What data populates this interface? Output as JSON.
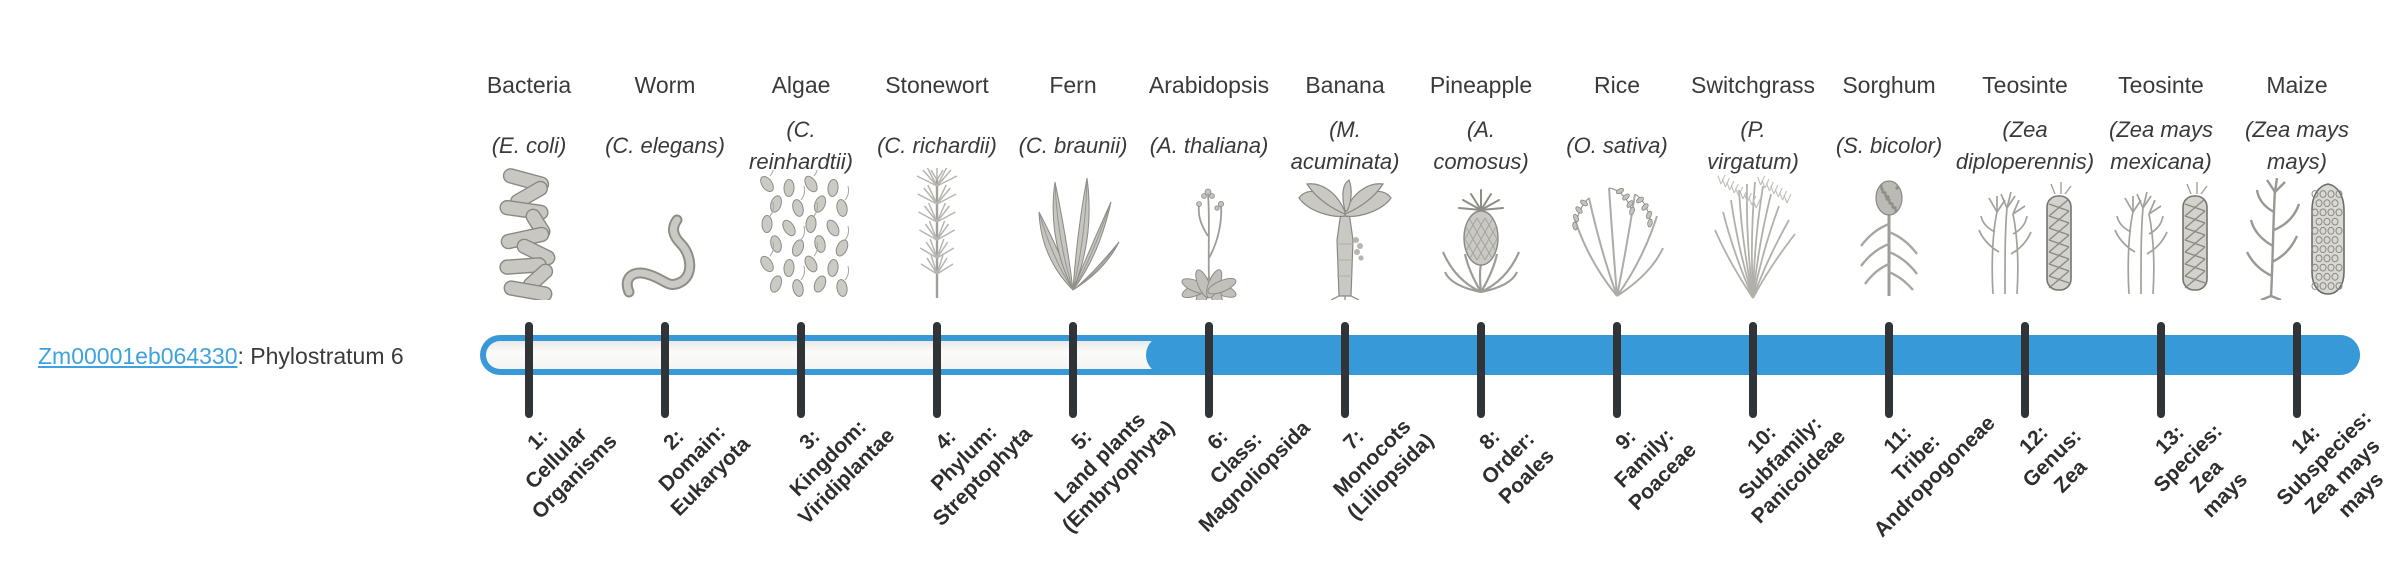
{
  "gene": {
    "id": "Zm00001eb064330",
    "suffix": ": Phylostratum 6",
    "phylostratum": 6
  },
  "colors": {
    "bar_blue": "#3899d9",
    "link_blue": "#3ea2de",
    "tick": "#313437",
    "text": "#3a3a3a",
    "stratum_label": "#2e2e2e"
  },
  "taxa": [
    {
      "common": "Bacteria",
      "species": "(E. coli)",
      "icon": "bacteria-icon",
      "stratum_label": "1:\nCellular\nOrganisms"
    },
    {
      "common": "Worm",
      "species": "(C. elegans)",
      "icon": "worm-icon",
      "stratum_label": "2:\nDomain:\nEukaryota"
    },
    {
      "common": "Algae",
      "species": "(C.\nreinhardtii)",
      "icon": "algae-icon",
      "stratum_label": "3:\nKingdom:\nViridiplantae"
    },
    {
      "common": "Stonewort",
      "species": "(C. richardii)",
      "icon": "stonewort-icon",
      "stratum_label": "4:\nPhylum:\nStreptophyta"
    },
    {
      "common": "Fern",
      "species": "(C. braunii)",
      "icon": "fern-icon",
      "stratum_label": "5:\nLand plants\n(Embryophyta)"
    },
    {
      "common": "Arabidopsis",
      "species": "(A. thaliana)",
      "icon": "arabidopsis-icon",
      "stratum_label": "6:\nClass:\nMagnoliopsida"
    },
    {
      "common": "Banana",
      "species": "(M.\nacuminata)",
      "icon": "banana-icon",
      "stratum_label": "7:\nMonocots\n(Liliopsida)"
    },
    {
      "common": "Pineapple",
      "species": "(A.\ncomosus)",
      "icon": "pineapple-icon",
      "stratum_label": "8:\nOrder:\nPoales"
    },
    {
      "common": "Rice",
      "species": "(O. sativa)",
      "icon": "rice-icon",
      "stratum_label": "9:\nFamily:\nPoaceae"
    },
    {
      "common": "Switchgrass",
      "species": "(P.\nvirgatum)",
      "icon": "switchgrass-icon",
      "stratum_label": "10:\nSubfamily:\nPanicoideae"
    },
    {
      "common": "Sorghum",
      "species": "(S. bicolor)",
      "icon": "sorghum-icon",
      "stratum_label": "11:\nTribe:\nAndropogoneae"
    },
    {
      "common": "Teosinte",
      "species": "(Zea\ndiploperennis)",
      "icon": "teosinte-icon",
      "stratum_label": "12:\nGenus:\nZea"
    },
    {
      "common": "Teosinte",
      "species": "(Zea mays\nmexicana)",
      "icon": "teosinte-icon",
      "stratum_label": "13:\nSpecies:\nZea\nmays"
    },
    {
      "common": "Maize",
      "species": "(Zea mays\nmays)",
      "icon": "maize-icon",
      "stratum_label": "14:\nSubspecies:\nZea mays\nmays"
    }
  ],
  "chart_data": {
    "type": "bar",
    "title": "Zm00001eb064330: Phylostratum 6",
    "description": "Phylostratigraphy timeline: a horizontal capsule spanning 14 taxonomic strata; strata 6 through 14 are filled blue, indicating the gene dates to phylostratum 6 (Class: Magnoliopsida).",
    "categories": [
      "1: Cellular Organisms",
      "2: Domain: Eukaryota",
      "3: Kingdom: Viridiplantae",
      "4: Phylum: Streptophyta",
      "5: Land plants (Embryophyta)",
      "6: Class: Magnoliopsida",
      "7: Monocots (Liliopsida)",
      "8: Order: Poales",
      "9: Family: Poaceae",
      "10: Subfamily: Panicoideae",
      "11: Tribe: Andropogoneae",
      "12: Genus: Zea",
      "13: Species: Zea mays",
      "14: Subspecies: Zea mays mays"
    ],
    "series": [
      {
        "name": "stratum filled (1 = blue, 0 = empty)",
        "values": [
          0,
          0,
          0,
          0,
          0,
          1,
          1,
          1,
          1,
          1,
          1,
          1,
          1,
          1
        ]
      }
    ],
    "tick_organisms": [
      "Bacteria (E. coli)",
      "Worm (C. elegans)",
      "Algae (C. reinhardtii)",
      "Stonewort (C. richardii)",
      "Fern (C. braunii)",
      "Arabidopsis (A. thaliana)",
      "Banana (M. acuminata)",
      "Pineapple (A. comosus)",
      "Rice (O. sativa)",
      "Switchgrass (P. virgatum)",
      "Sorghum (S. bicolor)",
      "Teosinte (Zea diploperennis)",
      "Teosinte (Zea mays mexicana)",
      "Maize (Zea mays mays)"
    ],
    "legend_position": "none",
    "grid": false
  }
}
